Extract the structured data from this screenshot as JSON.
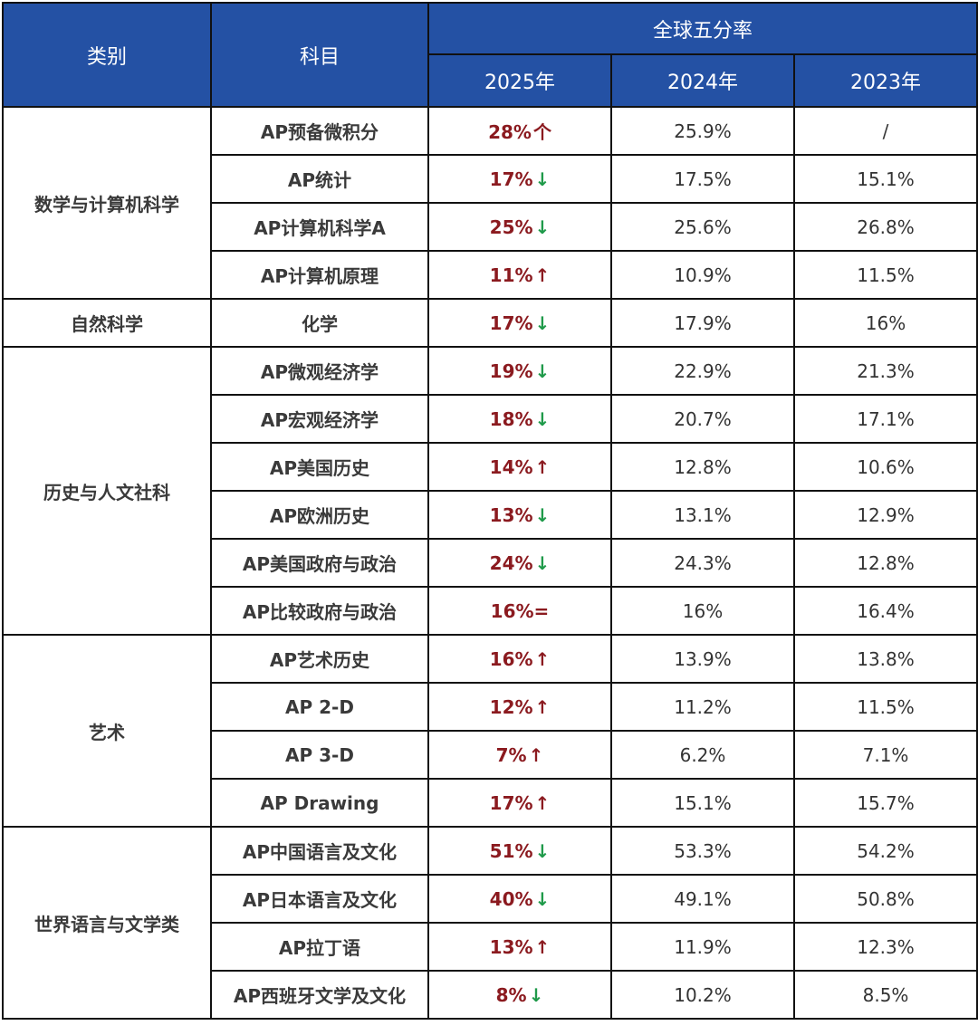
{
  "header": {
    "category": "类别",
    "subject": "科目",
    "group_title": "全球五分率",
    "years": [
      "2025年",
      "2024年",
      "2023年"
    ]
  },
  "colors": {
    "header_bg": "#2451a4",
    "rate_red": "#8b1a1f",
    "trend_down_green": "#1f9a4a",
    "border": "#111111"
  },
  "icons": {
    "up": "↑",
    "down": "↓",
    "equal": "="
  },
  "categories": [
    {
      "name": "数学与计算机科学",
      "rows": [
        {
          "subject": "AP预备微积分",
          "y2025": "28%",
          "trend": "up",
          "trend_glyph": "个",
          "y2024": "25.9%",
          "y2023": "/"
        },
        {
          "subject": "AP统计",
          "y2025": "17%",
          "trend": "down",
          "trend_glyph": "↓",
          "y2024": "17.5%",
          "y2023": "15.1%"
        },
        {
          "subject": "AP计算机科学A",
          "y2025": "25%",
          "trend": "down",
          "trend_glyph": "↓",
          "y2024": "25.6%",
          "y2023": "26.8%"
        },
        {
          "subject": "AP计算机原理",
          "y2025": "11%",
          "trend": "up",
          "trend_glyph": "↑",
          "y2024": "10.9%",
          "y2023": "11.5%"
        }
      ]
    },
    {
      "name": "自然科学",
      "rows": [
        {
          "subject": "化学",
          "y2025": "17%",
          "trend": "down",
          "trend_glyph": "↓",
          "y2024": "17.9%",
          "y2023": "16%"
        }
      ]
    },
    {
      "name": "历史与人文社科",
      "rows": [
        {
          "subject": "AP微观经济学",
          "y2025": "19%",
          "trend": "down",
          "trend_glyph": "↓",
          "y2024": "22.9%",
          "y2023": "21.3%"
        },
        {
          "subject": "AP宏观经济学",
          "y2025": "18%",
          "trend": "down",
          "trend_glyph": "↓",
          "y2024": "20.7%",
          "y2023": "17.1%"
        },
        {
          "subject": "AP美国历史",
          "y2025": "14%",
          "trend": "up",
          "trend_glyph": "↑",
          "y2024": "12.8%",
          "y2023": "10.6%"
        },
        {
          "subject": "AP欧洲历史",
          "y2025": "13%",
          "trend": "down",
          "trend_glyph": "↓",
          "y2024": "13.1%",
          "y2023": "12.9%"
        },
        {
          "subject": "AP美国政府与政治",
          "y2025": "24%",
          "trend": "down",
          "trend_glyph": "↓",
          "y2024": "24.3%",
          "y2023": "12.8%"
        },
        {
          "subject": "AP比较政府与政治",
          "y2025": "16%",
          "trend": "equal",
          "trend_glyph": "=",
          "y2024": "16%",
          "y2023": "16.4%"
        }
      ]
    },
    {
      "name": "艺术",
      "rows": [
        {
          "subject": "AP艺术历史",
          "y2025": "16%",
          "trend": "up",
          "trend_glyph": "↑",
          "y2024": "13.9%",
          "y2023": "13.8%"
        },
        {
          "subject": "AP 2-D",
          "y2025": "12%",
          "trend": "up",
          "trend_glyph": "↑",
          "y2024": "11.2%",
          "y2023": "11.5%"
        },
        {
          "subject": "AP 3-D",
          "y2025": "7%",
          "trend": "up",
          "trend_glyph": "↑",
          "y2024": "6.2%",
          "y2023": "7.1%"
        },
        {
          "subject": "AP Drawing",
          "y2025": "17%",
          "trend": "up",
          "trend_glyph": "↑",
          "y2024": "15.1%",
          "y2023": "15.7%"
        }
      ]
    },
    {
      "name": "世界语言与文学类",
      "rows": [
        {
          "subject": "AP中国语言及文化",
          "y2025": "51%",
          "trend": "down",
          "trend_glyph": "↓",
          "y2024": "53.3%",
          "y2023": "54.2%"
        },
        {
          "subject": "AP日本语言及文化",
          "y2025": "40%",
          "trend": "down",
          "trend_glyph": "↓",
          "y2024": "49.1%",
          "y2023": "50.8%"
        },
        {
          "subject": "AP拉丁语",
          "y2025": "13%",
          "trend": "up",
          "trend_glyph": "↑",
          "y2024": "11.9%",
          "y2023": "12.3%"
        },
        {
          "subject": "AP西班牙文学及文化",
          "y2025": "8%",
          "trend": "down",
          "trend_glyph": "↓",
          "y2024": "10.2%",
          "y2023": "8.5%"
        }
      ]
    }
  ]
}
